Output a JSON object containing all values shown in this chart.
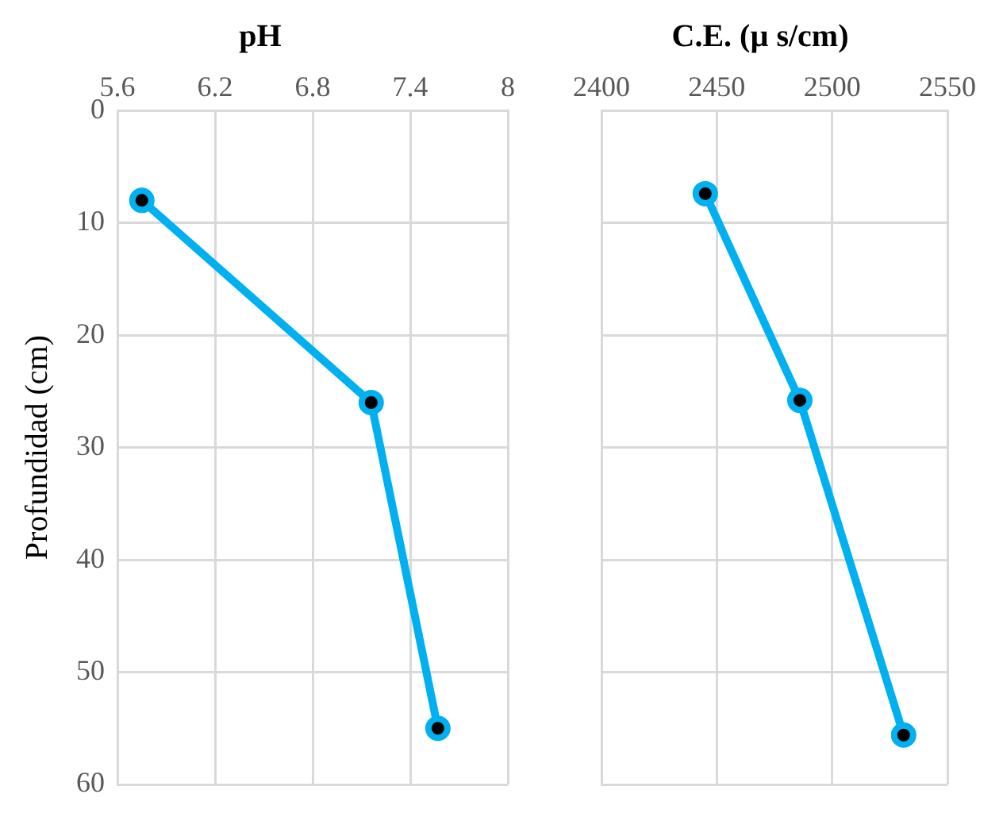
{
  "chart_data": [
    {
      "type": "line",
      "title": "pH",
      "ylabel": "Profundidad (cm)",
      "x": [
        5.75,
        7.16,
        7.57
      ],
      "values": [
        8,
        26,
        55
      ],
      "color": "#00b0f0",
      "marker": "circle",
      "xlim": [
        5.6,
        8
      ],
      "xticks": [
        5.6,
        6.2,
        6.8,
        7.4,
        8
      ],
      "ylim": [
        60,
        0
      ],
      "yticks": [
        0,
        10,
        20,
        30,
        40,
        50,
        60
      ],
      "grid": true
    },
    {
      "type": "line",
      "title": "C.E. (µ s/cm)",
      "x": [
        2445,
        2486,
        2531
      ],
      "values": [
        7.4,
        25.8,
        55.6
      ],
      "color": "#00b0f0",
      "marker": "circle",
      "xlim": [
        2400,
        2550
      ],
      "xticks": [
        2400,
        2450,
        2500,
        2550
      ],
      "ylim": [
        60,
        0
      ],
      "yticks": [
        0,
        10,
        20,
        30,
        40,
        50,
        60
      ],
      "grid": true,
      "tick_labels": "x"
    }
  ]
}
